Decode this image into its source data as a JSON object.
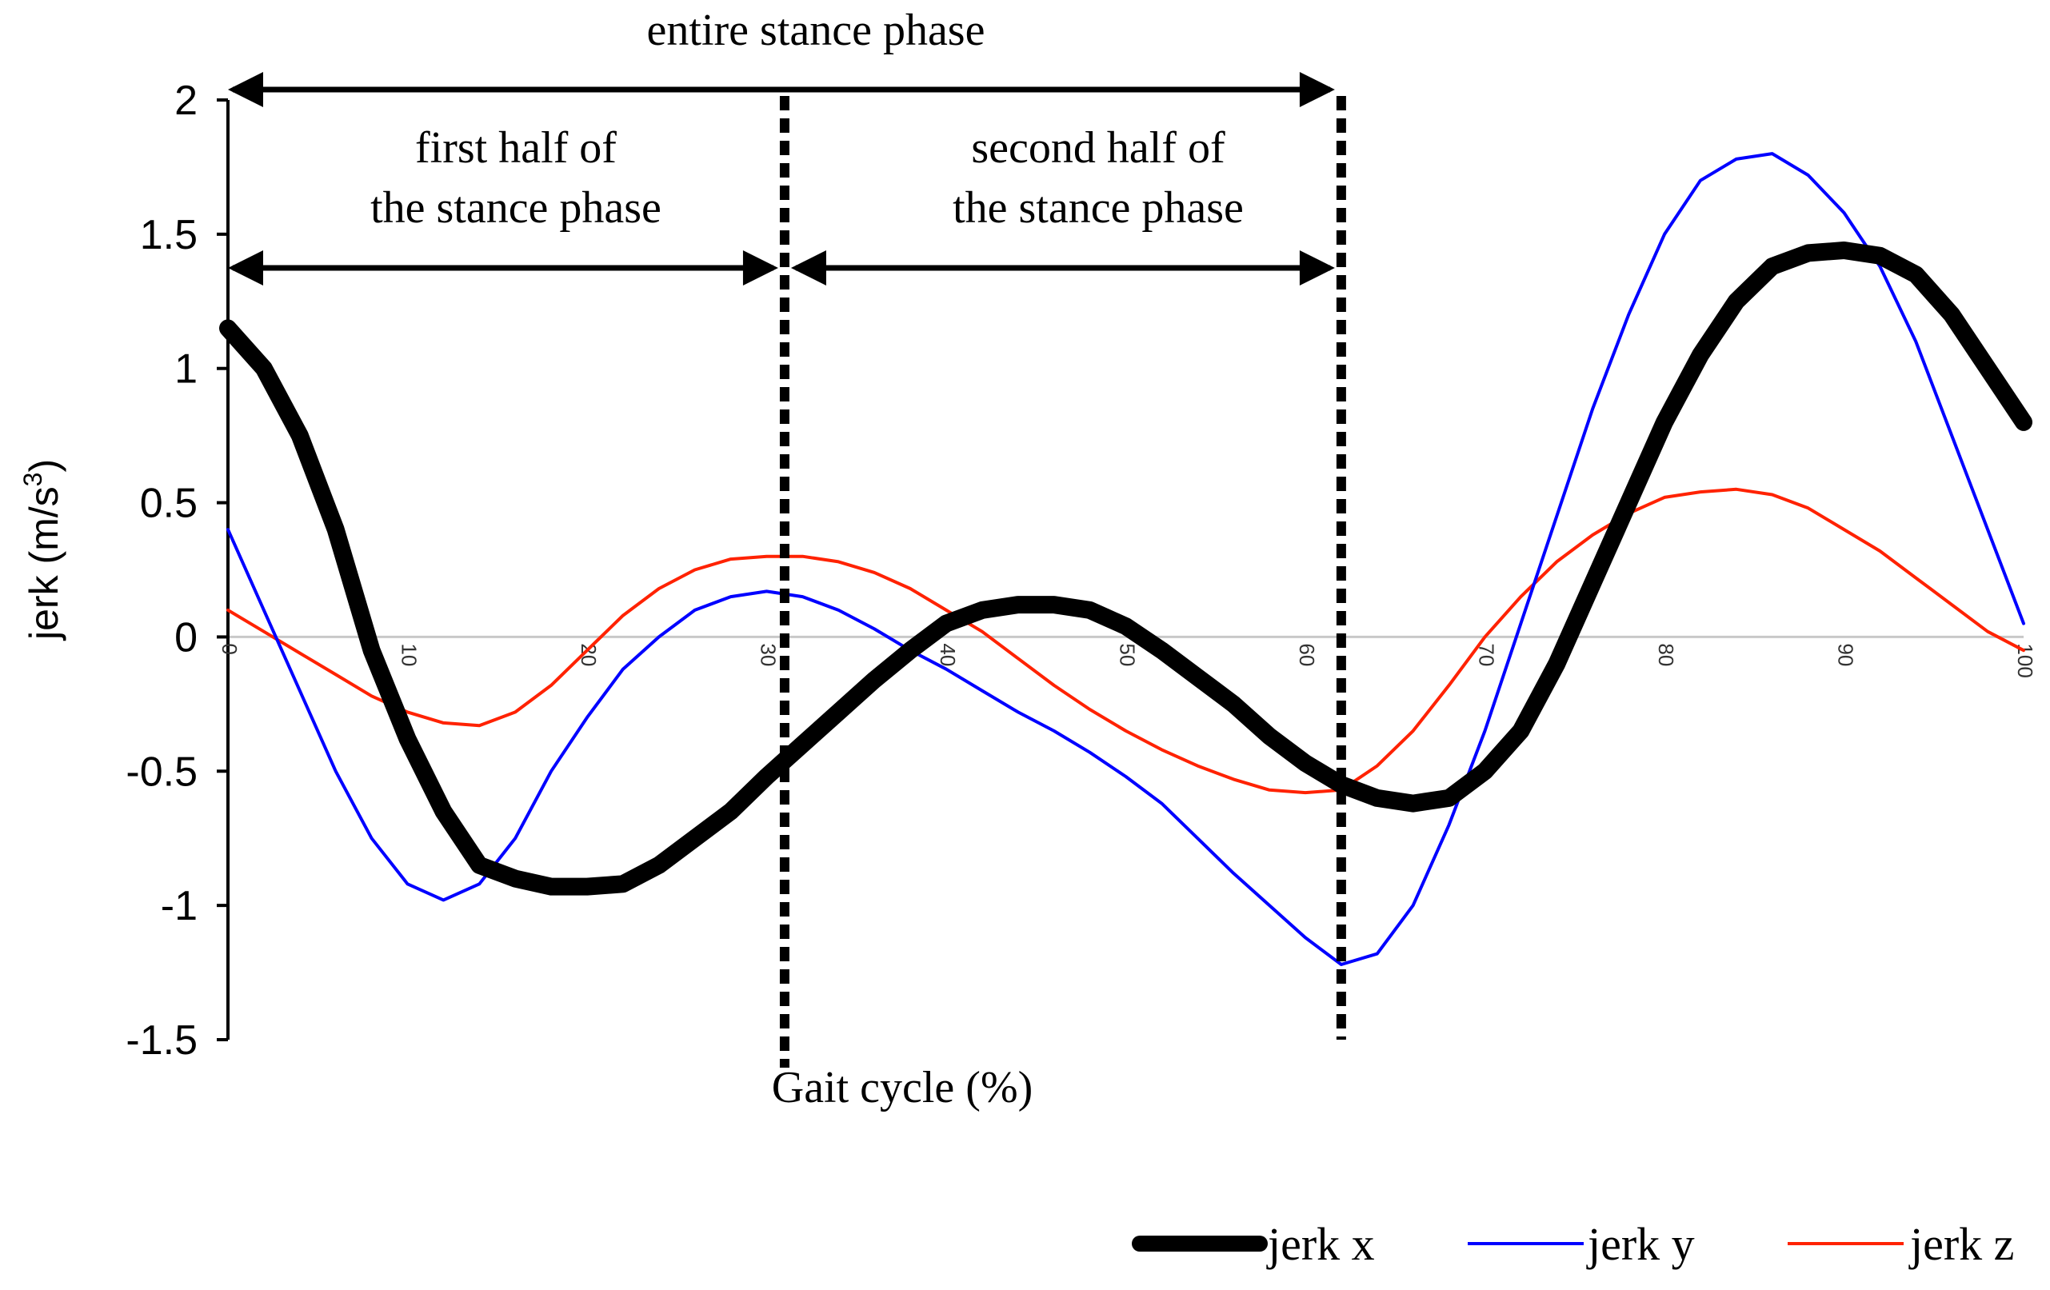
{
  "chart_data": {
    "type": "line",
    "title": "",
    "xlabel": "Gait cycle (%)",
    "ylabel_main": "jerk (m/s",
    "ylabel_sup": "3",
    "ylabel_close": ")",
    "xlim": [
      0,
      100
    ],
    "ylim": [
      -1.5,
      2
    ],
    "x_ticks": [
      "0",
      "10",
      "20",
      "30",
      "40",
      "50",
      "60",
      "70",
      "80",
      "90",
      "100"
    ],
    "y_ticks": [
      "2",
      "1.5",
      "1",
      "0.5",
      "0",
      "-0.5",
      "-1",
      "-1.5"
    ],
    "legend_position": "bottom-right",
    "series": [
      {
        "name": "jerk x",
        "color": "#000000",
        "x": [
          0,
          2,
          4,
          6,
          8,
          10,
          12,
          14,
          16,
          18,
          20,
          22,
          24,
          26,
          28,
          30,
          32,
          34,
          36,
          38,
          40,
          42,
          44,
          46,
          48,
          50,
          52,
          54,
          56,
          58,
          60,
          62,
          64,
          66,
          68,
          70,
          72,
          74,
          76,
          78,
          80,
          82,
          84,
          86,
          88,
          90,
          92,
          94,
          96,
          98,
          100
        ],
        "y": [
          1.15,
          1.0,
          0.75,
          0.4,
          -0.05,
          -0.38,
          -0.65,
          -0.85,
          -0.9,
          -0.93,
          -0.93,
          -0.92,
          -0.85,
          -0.75,
          -0.65,
          -0.52,
          -0.4,
          -0.28,
          -0.16,
          -0.05,
          0.05,
          0.1,
          0.12,
          0.12,
          0.1,
          0.04,
          -0.05,
          -0.15,
          -0.25,
          -0.37,
          -0.47,
          -0.55,
          -0.6,
          -0.62,
          -0.6,
          -0.5,
          -0.35,
          -0.1,
          0.2,
          0.5,
          0.8,
          1.05,
          1.25,
          1.38,
          1.43,
          1.44,
          1.42,
          1.35,
          1.2,
          1.0,
          0.8
        ]
      },
      {
        "name": "jerk y",
        "color": "#0000ff",
        "x": [
          0,
          2,
          4,
          6,
          8,
          10,
          12,
          14,
          16,
          18,
          20,
          22,
          24,
          26,
          28,
          30,
          32,
          34,
          36,
          38,
          40,
          42,
          44,
          46,
          48,
          50,
          52,
          54,
          56,
          58,
          60,
          62,
          64,
          66,
          68,
          70,
          72,
          74,
          76,
          78,
          80,
          82,
          84,
          86,
          88,
          90,
          92,
          94,
          96,
          98,
          100
        ],
        "y": [
          0.4,
          0.1,
          -0.2,
          -0.5,
          -0.75,
          -0.92,
          -0.98,
          -0.92,
          -0.75,
          -0.5,
          -0.3,
          -0.12,
          0.0,
          0.1,
          0.15,
          0.17,
          0.15,
          0.1,
          0.03,
          -0.05,
          -0.12,
          -0.2,
          -0.28,
          -0.35,
          -0.43,
          -0.52,
          -0.62,
          -0.75,
          -0.88,
          -1.0,
          -1.12,
          -1.22,
          -1.18,
          -1.0,
          -0.7,
          -0.35,
          0.05,
          0.45,
          0.85,
          1.2,
          1.5,
          1.7,
          1.78,
          1.8,
          1.72,
          1.58,
          1.38,
          1.1,
          0.75,
          0.4,
          0.05
        ]
      },
      {
        "name": "jerk z",
        "color": "#ff2200",
        "x": [
          0,
          2,
          4,
          6,
          8,
          10,
          12,
          14,
          16,
          18,
          20,
          22,
          24,
          26,
          28,
          30,
          32,
          34,
          36,
          38,
          40,
          42,
          44,
          46,
          48,
          50,
          52,
          54,
          56,
          58,
          60,
          62,
          64,
          66,
          68,
          70,
          72,
          74,
          76,
          78,
          80,
          82,
          84,
          86,
          88,
          90,
          92,
          94,
          96,
          98,
          100
        ],
        "y": [
          0.1,
          0.02,
          -0.06,
          -0.14,
          -0.22,
          -0.28,
          -0.32,
          -0.33,
          -0.28,
          -0.18,
          -0.05,
          0.08,
          0.18,
          0.25,
          0.29,
          0.3,
          0.3,
          0.28,
          0.24,
          0.18,
          0.1,
          0.02,
          -0.08,
          -0.18,
          -0.27,
          -0.35,
          -0.42,
          -0.48,
          -0.53,
          -0.57,
          -0.58,
          -0.57,
          -0.48,
          -0.35,
          -0.18,
          0.0,
          0.15,
          0.28,
          0.38,
          0.46,
          0.52,
          0.54,
          0.55,
          0.53,
          0.48,
          0.4,
          0.32,
          0.22,
          0.12,
          0.02,
          -0.05
        ]
      }
    ],
    "annotations": {
      "entire": "entire stance phase",
      "first_line1": "first half of",
      "first_line2": "the stance phase",
      "second_line1": "second half of",
      "second_line2": "the stance phase",
      "divider_1_x": 31,
      "divider_2_x": 62
    }
  }
}
